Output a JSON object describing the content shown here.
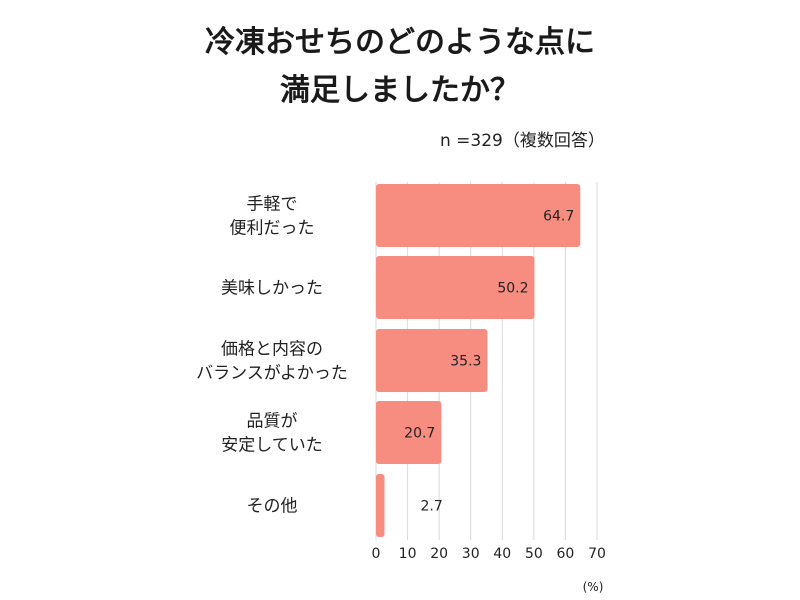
{
  "chart_data": {
    "type": "bar",
    "orientation": "horizontal",
    "title_lines": [
      "冷凍おせちのどのような点に",
      "満足しましたか？"
    ],
    "note": "n =329（複数回答）",
    "categories": [
      [
        "手軽で",
        "便利だった"
      ],
      [
        "美味しかった"
      ],
      [
        "価格と内容の",
        "バランスがよかった"
      ],
      [
        "品質が",
        "安定していた"
      ],
      [
        "その他"
      ]
    ],
    "values": [
      64.7,
      50.2,
      35.3,
      20.7,
      2.7
    ],
    "value_labels": [
      "64.7",
      "50.2",
      "35.3",
      "20.7",
      "2.7"
    ],
    "x_ticks": [
      "0",
      "10",
      "20",
      "30",
      "40",
      "50",
      "60",
      "70"
    ],
    "x_unit": "(%)",
    "xlim": [
      0,
      70
    ],
    "grid": true,
    "legend": "none"
  },
  "colors": {
    "bar": "#f78d80",
    "grid": "#d9d9d9",
    "text": "#222222"
  }
}
